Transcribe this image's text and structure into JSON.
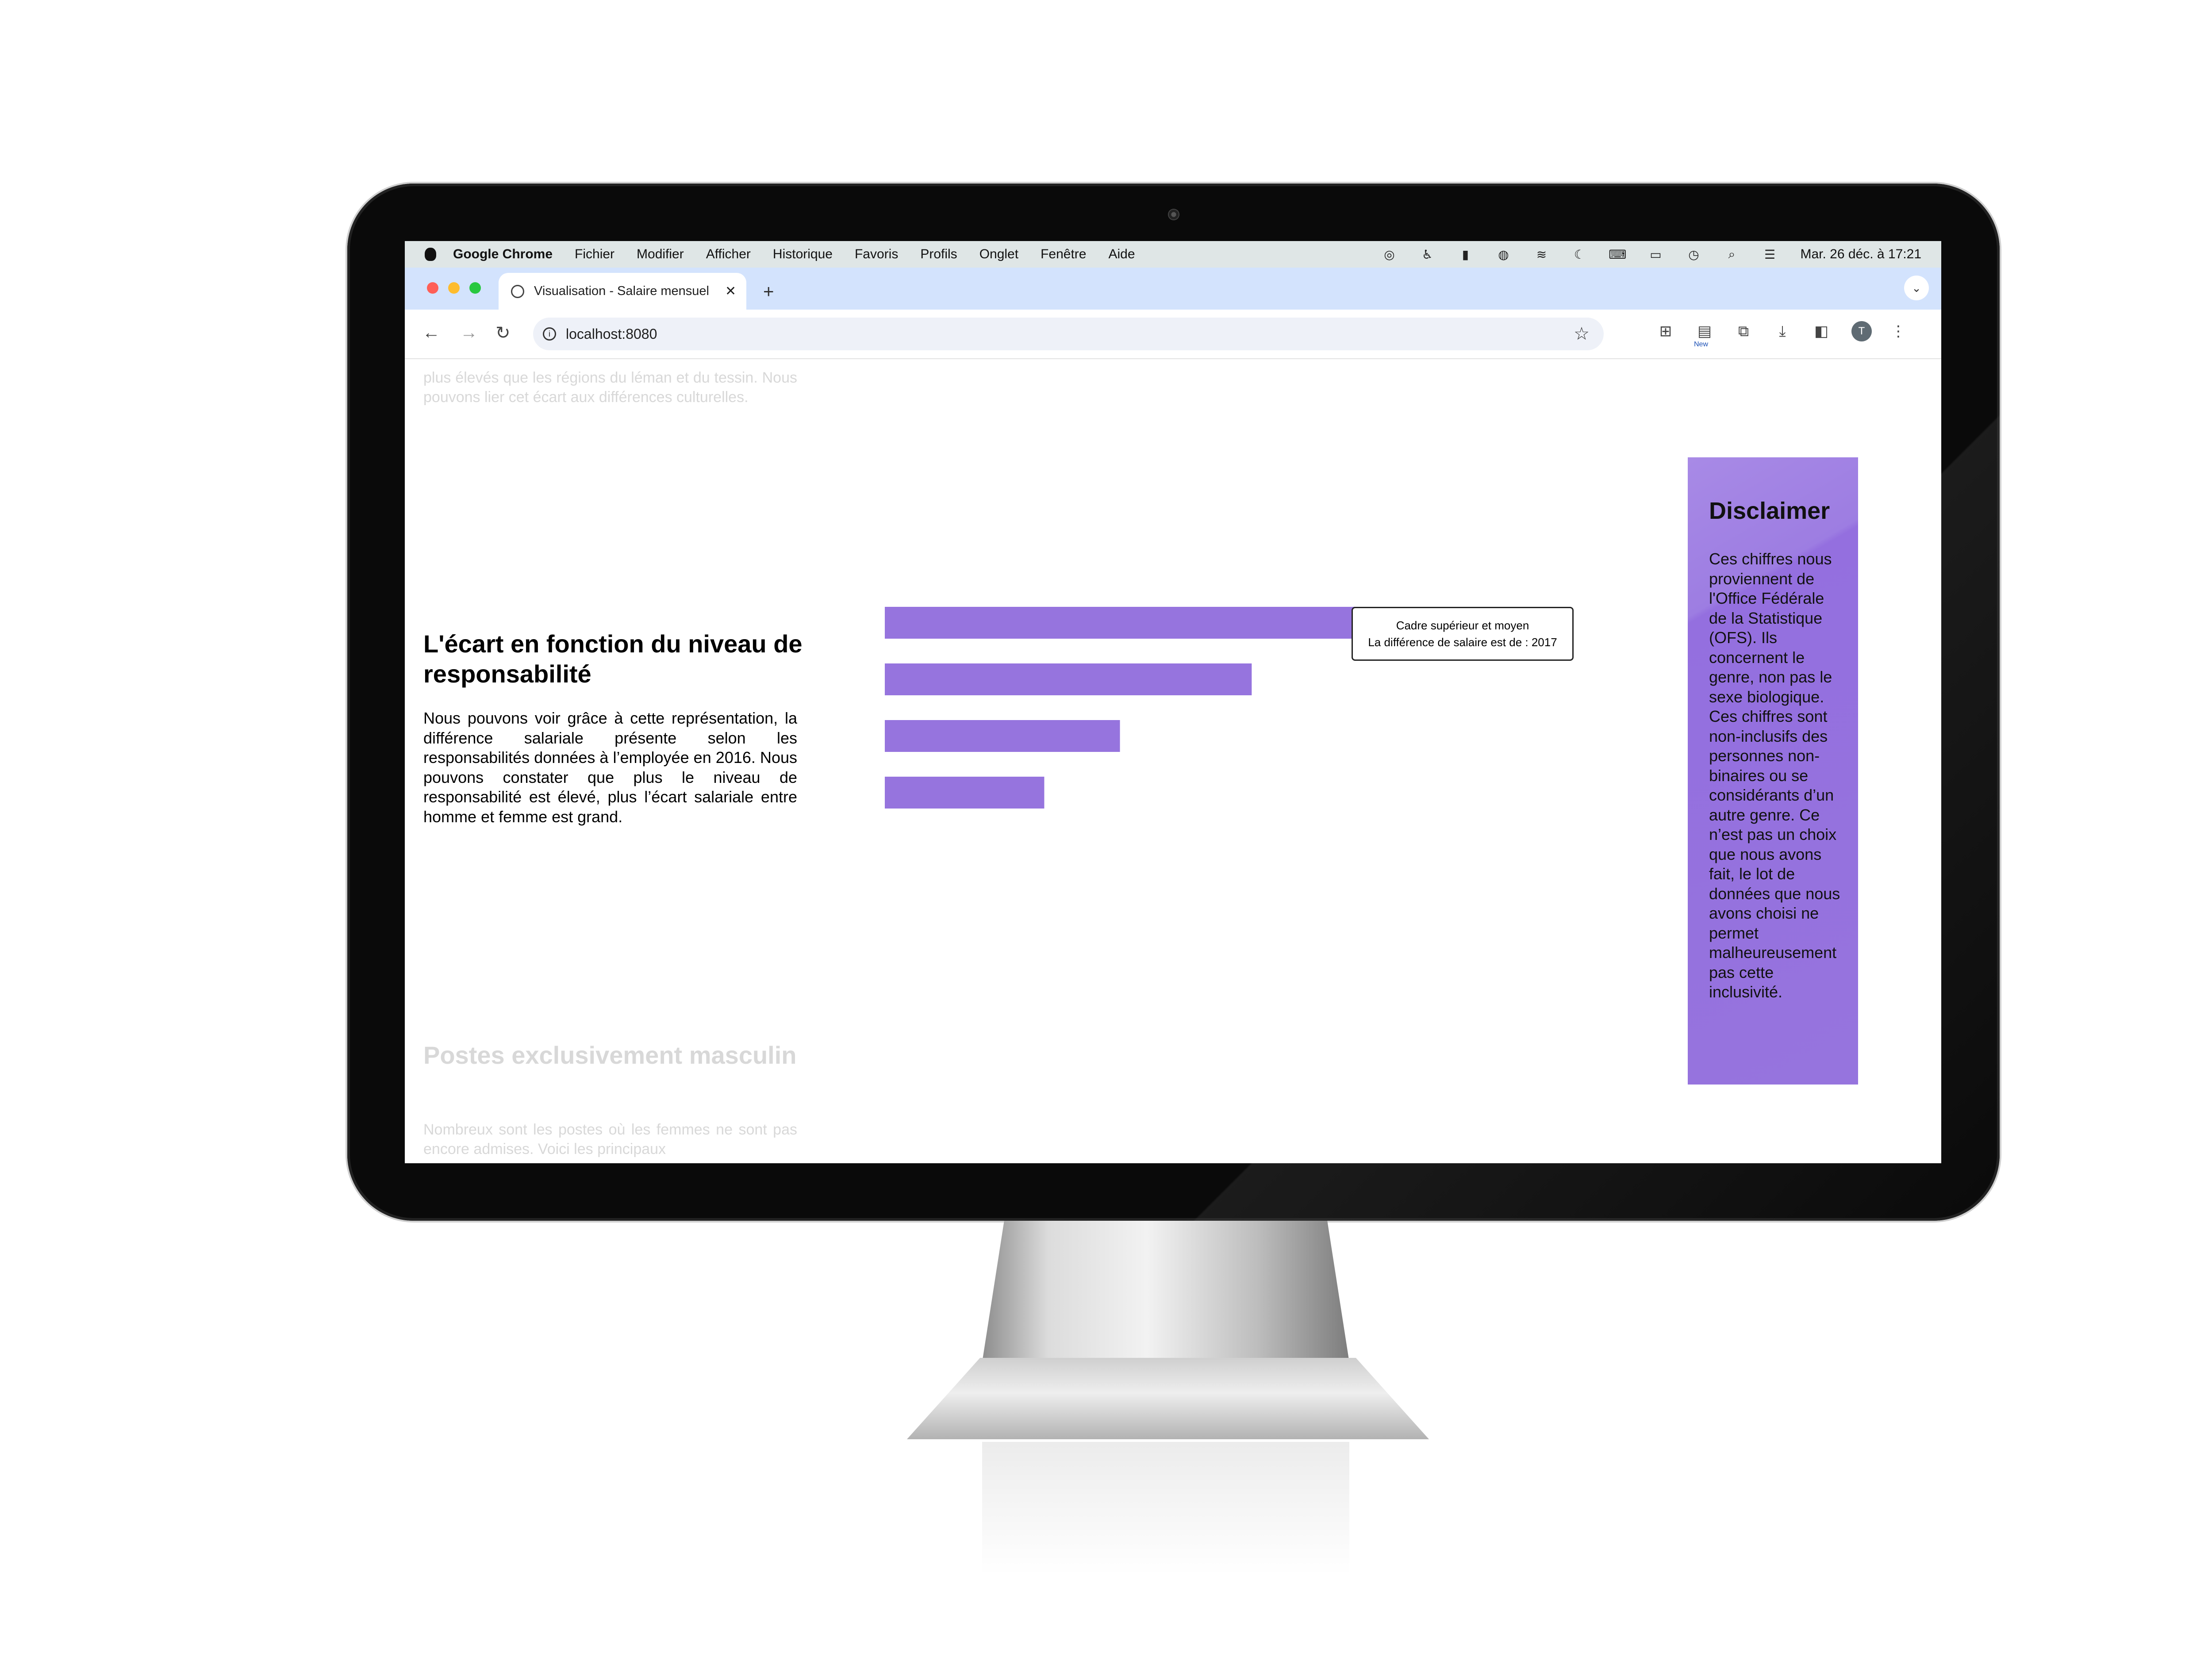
{
  "menubar": {
    "app": "Google Chrome",
    "items": [
      "Fichier",
      "Modifier",
      "Afficher",
      "Historique",
      "Favoris",
      "Profils",
      "Onglet",
      "Fenêtre",
      "Aide"
    ],
    "clock": "Mar. 26 déc. à 17:21"
  },
  "browser": {
    "tab_title": "Visualisation - Salaire mensuel",
    "url": "localhost:8080",
    "new_badge": "New",
    "avatar_letter": "T"
  },
  "page": {
    "top_fragment": "plus élevés que les régions du léman et du tessin. Nous pouvons lier cet écart aux différences culturelles.",
    "section_title": "L'écart en fonction du niveau de responsabilité",
    "section_text": "Nous pouvons voir grâce à cette représentation, la différence salariale présente selon les responsabilités données à l’employée en 2016. Nous pouvons constater que plus le niveau de responsabilité est élevé, plus l’écart salariale entre homme et femme est grand.",
    "next_title": "Postes exclusivement masculin",
    "next_text": "Nombreux sont les postes où les femmes ne sont pas encore admises. Voici les principaux"
  },
  "tooltip": {
    "line1": "Cadre supérieur et moyen",
    "line2": "La différence de salaire est de : 2017"
  },
  "chart_data": {
    "type": "bar",
    "orientation": "horizontal",
    "categories": [
      "Cadre supérieur et moyen",
      "",
      "",
      ""
    ],
    "values": [
      2017,
      1178,
      755,
      512
    ],
    "bar_color": "#9674de"
  },
  "disclaimer": {
    "title": "Disclaimer",
    "text": "Ces chiffres nous proviennent de l'Office Fédérale de la Statistique (OFS). Ils concernent le genre, non pas le sexe biologique. Ces chiffres sont non-inclusifs des personnes non-binaires ou se considérants d’un autre genre. Ce n’est pas un choix que nous avons fait, le lot de données que nous avons choisi ne permet malheureusement pas cette inclusivité."
  }
}
